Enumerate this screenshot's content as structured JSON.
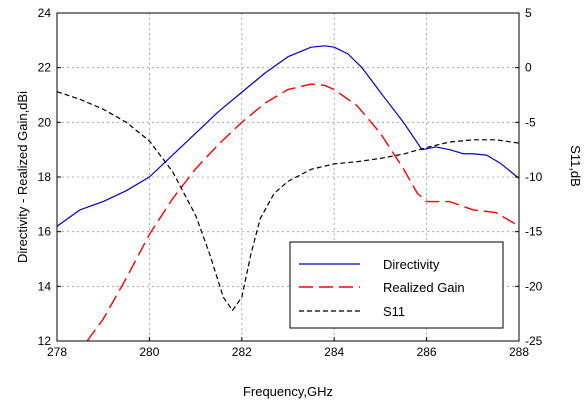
{
  "chart_data": {
    "type": "line",
    "title": "",
    "xlabel": "Frequency,GHz",
    "ylabel_left": "Directivity - Realized Gain,dBi",
    "ylabel_right": "S11,dB",
    "xlim": [
      278,
      288
    ],
    "ylim_left": [
      12,
      24
    ],
    "ylim_right": [
      -25,
      5
    ],
    "xticks": [
      "278",
      "280",
      "282",
      "284",
      "286",
      "288"
    ],
    "yticks_left": [
      "12",
      "14",
      "16",
      "18",
      "20",
      "22",
      "24"
    ],
    "yticks_right": [
      "-25",
      "-20",
      "-15",
      "-10",
      "-5",
      "0",
      "5"
    ],
    "grid": true,
    "legend_position": "lower-right",
    "series": [
      {
        "name": "Directivity",
        "axis": "left",
        "color": "#0000cc",
        "dash": "solid",
        "x": [
          278,
          278.5,
          279,
          279.5,
          280,
          280.5,
          281,
          281.5,
          282,
          282.5,
          283,
          283.5,
          283.8,
          284,
          284.3,
          284.6,
          285,
          285.5,
          285.9,
          286.2,
          286.5,
          286.8,
          287,
          287.3,
          287.6,
          288
        ],
        "y": [
          16.2,
          16.8,
          17.1,
          17.5,
          18.0,
          18.8,
          19.6,
          20.4,
          21.1,
          21.8,
          22.4,
          22.75,
          22.8,
          22.75,
          22.5,
          22.0,
          21.1,
          20.0,
          19.0,
          19.1,
          19.0,
          18.85,
          18.85,
          18.8,
          18.5,
          17.95
        ]
      },
      {
        "name": "Realized Gain",
        "axis": "left",
        "color": "#ff0000",
        "dash": "dashed",
        "x": [
          278.65,
          279,
          279.5,
          280,
          280.5,
          281,
          281.5,
          282,
          282.5,
          283,
          283.5,
          283.8,
          284,
          284.5,
          285,
          285.5,
          285.8,
          286,
          286.5,
          287,
          287.5,
          288
        ],
        "y": [
          12.0,
          12.8,
          14.3,
          15.9,
          17.2,
          18.3,
          19.2,
          20.0,
          20.7,
          21.2,
          21.4,
          21.35,
          21.2,
          20.6,
          19.6,
          18.3,
          17.4,
          17.1,
          17.1,
          16.8,
          16.7,
          16.2
        ]
      },
      {
        "name": "S11",
        "axis": "right",
        "color": "#000000",
        "dash": "dashed",
        "x": [
          278,
          278.5,
          279,
          279.5,
          280,
          280.5,
          281,
          281.3,
          281.6,
          281.8,
          282,
          282.2,
          282.4,
          282.7,
          283,
          283.5,
          284,
          284.5,
          285,
          285.5,
          286,
          286.5,
          287,
          287.5,
          288
        ],
        "y": [
          -2.2,
          -2.9,
          -3.8,
          -5.0,
          -6.7,
          -9.5,
          -13.5,
          -17.0,
          -21.0,
          -22.2,
          -21.0,
          -17.0,
          -13.8,
          -11.5,
          -10.4,
          -9.3,
          -8.8,
          -8.6,
          -8.3,
          -7.9,
          -7.3,
          -6.8,
          -6.6,
          -6.6,
          -6.9
        ]
      }
    ]
  }
}
